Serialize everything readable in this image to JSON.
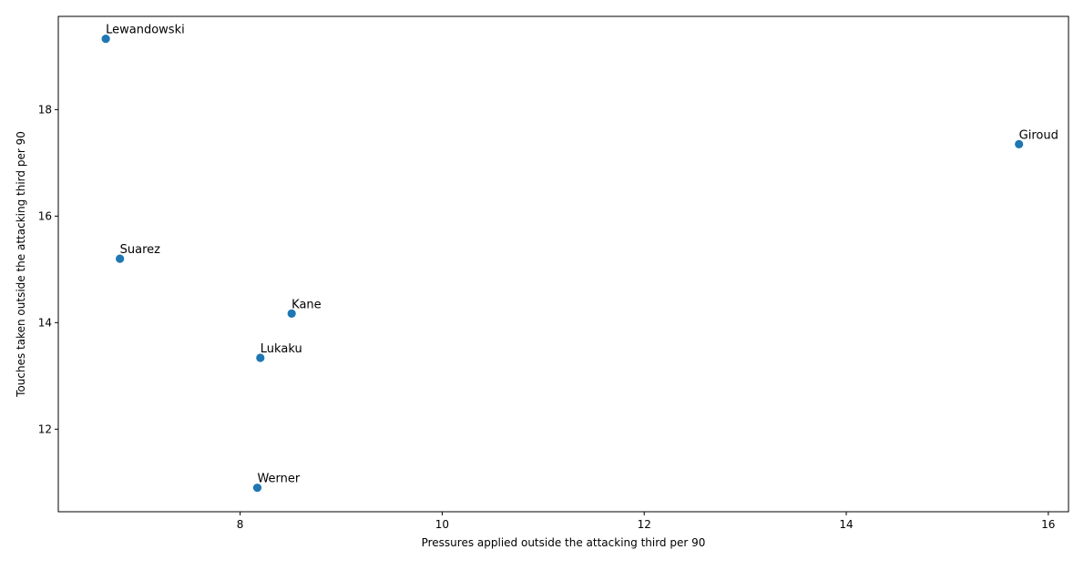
{
  "chart_data": {
    "type": "scatter",
    "title": "",
    "xlabel": "Pressures applied outside the attacking third per 90",
    "ylabel": "Touches taken outside the attacking third per 90",
    "xlim": [
      6.2,
      16.2
    ],
    "ylim": [
      10.45,
      19.75
    ],
    "xticks": [
      8,
      10,
      12,
      14,
      16
    ],
    "yticks": [
      12,
      14,
      16,
      18
    ],
    "grid": false,
    "marker_color": "#1f77b4",
    "points": [
      {
        "label": "Lewandowski",
        "x": 6.67,
        "y": 19.33
      },
      {
        "label": "Giroud",
        "x": 15.71,
        "y": 17.35
      },
      {
        "label": "Suarez",
        "x": 6.81,
        "y": 15.2
      },
      {
        "label": "Kane",
        "x": 8.51,
        "y": 14.17
      },
      {
        "label": "Lukaku",
        "x": 8.2,
        "y": 13.34
      },
      {
        "label": "Werner",
        "x": 8.17,
        "y": 10.9
      }
    ]
  }
}
